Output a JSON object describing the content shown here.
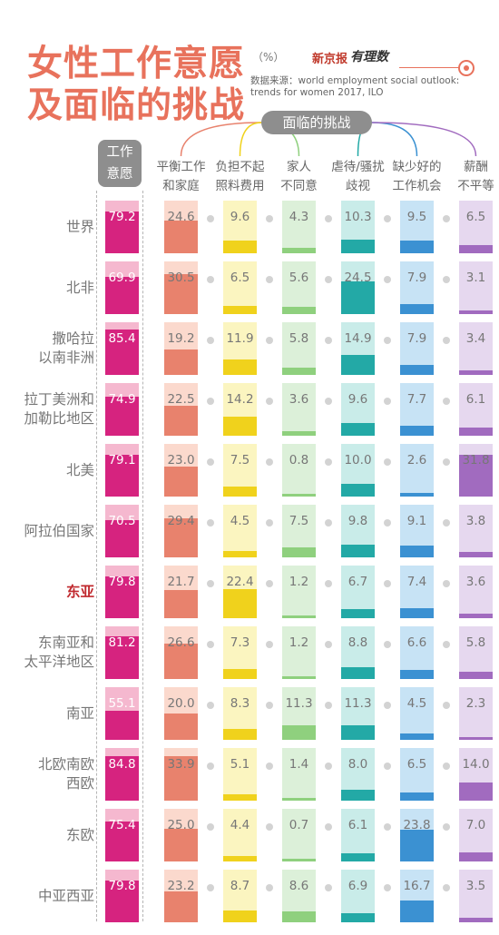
{
  "title_line1": "女性工作意愿",
  "title_line2": "及面临的挑战",
  "unit": "（%）",
  "logo_text": "新京报",
  "logo_brand": "有理数",
  "source": "数据来源：world employment social outlook: trends for women 2017, ILO",
  "challenge_header": "面临的挑战",
  "will_header_line1": "工作",
  "will_header_line2": "意愿",
  "colors": {
    "title": "#e8725c",
    "will_fill": "#d6237f",
    "will_bg": "#f5b8cf",
    "highlight_region": "#c0292e",
    "columns": [
      {
        "bg": "#fbd9cd",
        "fill": "#e8826d"
      },
      {
        "bg": "#fbf5c0",
        "fill": "#f0d21c"
      },
      {
        "bg": "#dcf0d9",
        "fill": "#8fd07e"
      },
      {
        "bg": "#c9ece9",
        "fill": "#23a9a6"
      },
      {
        "bg": "#c7e3f5",
        "fill": "#3b91d2"
      },
      {
        "bg": "#e6d8ef",
        "fill": "#a16bbf"
      }
    ]
  },
  "chart_data": {
    "type": "table",
    "title": "女性工作意愿及面临的挑战",
    "unit": "%",
    "columns": [
      {
        "key": "will",
        "label1": "工作",
        "label2": "意愿"
      },
      {
        "key": "balance",
        "label1": "平衡工作",
        "label2": "和家庭"
      },
      {
        "key": "childcare",
        "label1": "负担不起",
        "label2": "照料费用"
      },
      {
        "key": "family",
        "label1": "家人",
        "label2": "不同意"
      },
      {
        "key": "abuse",
        "label1": "虐待/骚扰",
        "label2": "歧视"
      },
      {
        "key": "jobs",
        "label1": "缺少好的",
        "label2": "工作机会"
      },
      {
        "key": "pay",
        "label1": "薪酬",
        "label2": "不平等"
      }
    ],
    "rows": [
      {
        "region": [
          "世界"
        ],
        "values": [
          79.2,
          24.6,
          9.6,
          4.3,
          10.3,
          9.5,
          6.5
        ]
      },
      {
        "region": [
          "北非"
        ],
        "values": [
          69.9,
          30.5,
          6.5,
          5.6,
          24.5,
          7.9,
          3.1
        ]
      },
      {
        "region": [
          "撒哈拉",
          "以南非洲"
        ],
        "values": [
          85.4,
          19.2,
          11.9,
          5.8,
          14.9,
          7.9,
          3.4
        ]
      },
      {
        "region": [
          "拉丁美洲和",
          "加勒比地区"
        ],
        "values": [
          74.9,
          22.5,
          14.2,
          3.6,
          9.6,
          7.7,
          6.1
        ]
      },
      {
        "region": [
          "北美"
        ],
        "values": [
          79.1,
          23.0,
          7.5,
          0.8,
          10.0,
          2.6,
          31.8
        ]
      },
      {
        "region": [
          "阿拉伯国家"
        ],
        "values": [
          70.5,
          29.4,
          4.5,
          7.5,
          9.8,
          9.1,
          3.8
        ]
      },
      {
        "region": [
          "东亚"
        ],
        "highlight": true,
        "values": [
          79.8,
          21.7,
          22.4,
          1.2,
          6.7,
          7.4,
          3.6
        ]
      },
      {
        "region": [
          "东南亚和",
          "太平洋地区"
        ],
        "values": [
          81.2,
          26.6,
          7.3,
          1.2,
          8.8,
          6.6,
          5.8
        ]
      },
      {
        "region": [
          "南亚"
        ],
        "values": [
          55.1,
          20.0,
          8.3,
          11.3,
          11.3,
          4.5,
          2.3
        ]
      },
      {
        "region": [
          "北欧南欧",
          "西欧"
        ],
        "values": [
          84.8,
          33.9,
          5.1,
          1.4,
          8.0,
          6.5,
          14.0
        ]
      },
      {
        "region": [
          "东欧"
        ],
        "values": [
          75.4,
          25.0,
          4.4,
          0.7,
          6.1,
          23.8,
          7.0
        ]
      },
      {
        "region": [
          "中亚西亚"
        ],
        "values": [
          79.8,
          23.2,
          8.7,
          8.6,
          6.9,
          16.7,
          3.5
        ]
      }
    ]
  }
}
